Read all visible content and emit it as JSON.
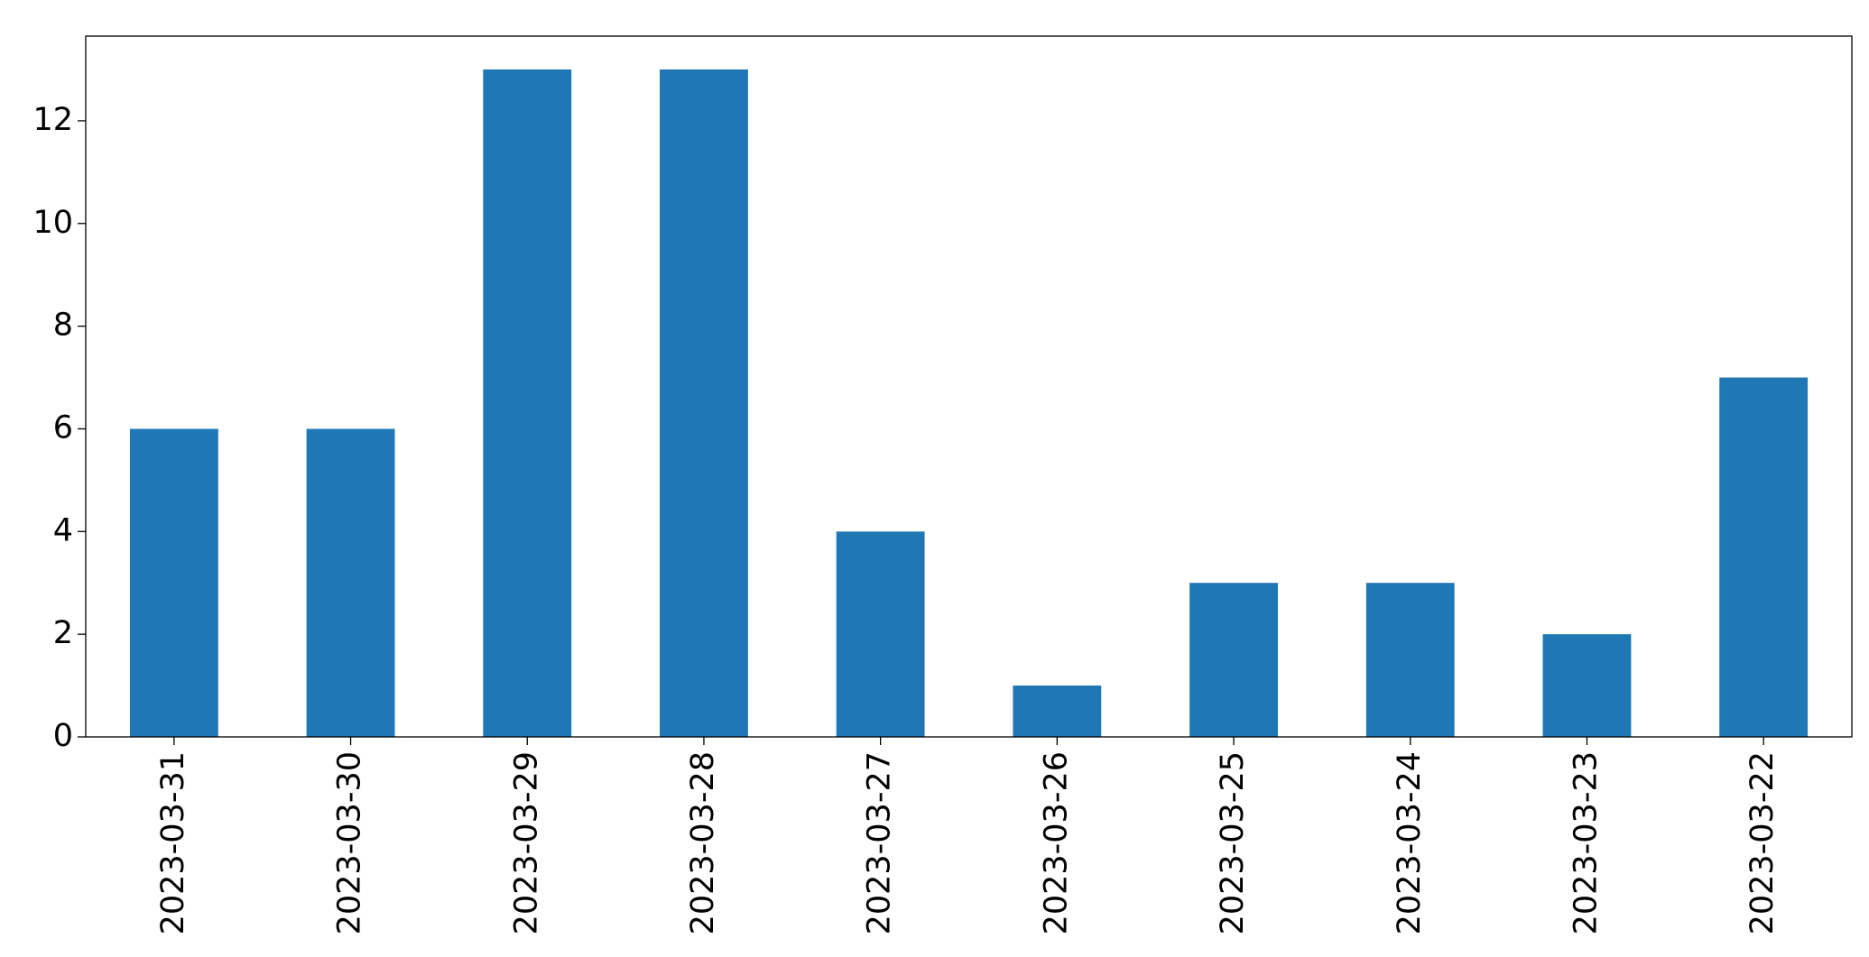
{
  "chart_data": {
    "type": "bar",
    "categories": [
      "2023-03-31",
      "2023-03-30",
      "2023-03-29",
      "2023-03-28",
      "2023-03-27",
      "2023-03-26",
      "2023-03-25",
      "2023-03-24",
      "2023-03-23",
      "2023-03-22"
    ],
    "values": [
      6,
      6,
      13,
      13,
      4,
      1,
      3,
      3,
      2,
      7
    ],
    "color": "#1f77b4",
    "ylim": [
      0,
      13.65
    ],
    "yticks": [
      0,
      2,
      4,
      6,
      8,
      10,
      12
    ],
    "grid": false
  }
}
